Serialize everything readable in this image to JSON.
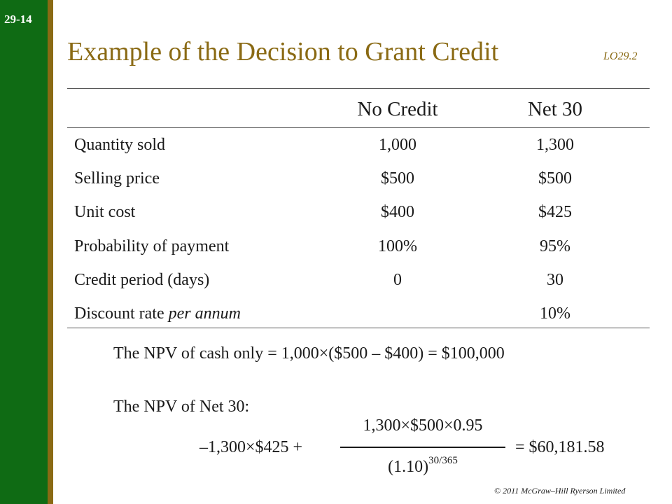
{
  "slide": {
    "number": "29-14",
    "title": "Example of the Decision to Grant Credit",
    "learning_objective": "LO29.2",
    "copyright": "© 2011 McGraw–Hill Ryerson  Limited"
  },
  "colors": {
    "sidebar": "#0f6b14",
    "accent": "#8a6a14",
    "text": "#1a1a1a"
  },
  "table": {
    "columns": [
      "No Credit",
      "Net 30"
    ],
    "rows": [
      {
        "label": "Quantity sold",
        "no_credit": "1,000",
        "net30": "1,300"
      },
      {
        "label": "Selling price",
        "no_credit": "$500",
        "net30": "$500"
      },
      {
        "label": "Unit cost",
        "no_credit": "$400",
        "net30": "$425"
      },
      {
        "label": "Probability of payment",
        "no_credit": "100%",
        "net30": "95%"
      },
      {
        "label": "Credit period (days)",
        "no_credit": "0",
        "net30": "30"
      },
      {
        "label": "Discount rate ",
        "label_italic": "per annum",
        "no_credit": "",
        "net30": "10%"
      }
    ]
  },
  "npv": {
    "cash_only": "The NPV of cash only = 1,000×($500 – $400) = $100,000",
    "net30_intro": "The NPV of Net 30:",
    "formula_lhs": "–1,300×$425 +",
    "formula_numerator": "1,300×$500×0.95",
    "formula_denominator_base": "(1.10)",
    "formula_denominator_exp": "30/365",
    "formula_rhs": "= $60,181.58"
  }
}
